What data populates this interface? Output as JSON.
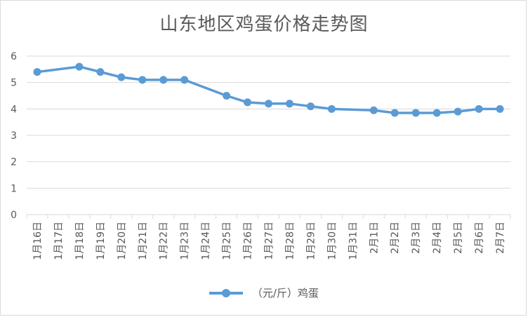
{
  "chart_data": {
    "type": "line",
    "title": "山东地区鸡蛋价格走势图",
    "categories": [
      "1月16日",
      "1月17日",
      "1月18日",
      "1月19日",
      "1月20日",
      "1月21日",
      "1月22日",
      "1月23日",
      "1月24日",
      "1月25日",
      "1月26日",
      "1月27日",
      "1月28日",
      "1月29日",
      "1月30日",
      "1月31日",
      "2月1日",
      "2月2日",
      "2月3日",
      "2月4日",
      "2月5日",
      "2月6日",
      "2月7日"
    ],
    "series": [
      {
        "name": "（元/斤）鸡蛋",
        "values": [
          5.4,
          null,
          5.6,
          5.4,
          5.2,
          5.1,
          5.1,
          5.1,
          null,
          4.5,
          4.25,
          4.2,
          4.2,
          4.1,
          4.0,
          null,
          3.95,
          3.85,
          3.85,
          3.85,
          3.9,
          4.0,
          4.0
        ]
      }
    ],
    "ylim": [
      0,
      6
    ],
    "yticks": [
      0,
      1,
      2,
      3,
      4,
      5,
      6
    ],
    "grid": true,
    "legend": "bottom",
    "color": "#5b9bd5"
  }
}
